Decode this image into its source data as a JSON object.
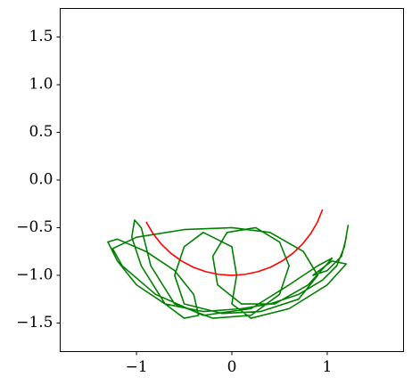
{
  "chart_data": {
    "type": "line",
    "xlim": [
      -1.8,
      1.8
    ],
    "ylim": [
      -1.8,
      1.8
    ],
    "xticks": [
      {
        "value": -1,
        "label": "−1"
      },
      0,
      1
    ],
    "yticks": [
      {
        "value": 1.5,
        "label": "1.5"
      },
      {
        "value": 1.0,
        "label": "1.0"
      },
      {
        "value": 0.5,
        "label": "0.5"
      },
      {
        "value": 0.0,
        "label": "0.0"
      },
      {
        "value": -0.5,
        "label": "−0.5"
      },
      {
        "value": -1.0,
        "label": "−1.0"
      },
      {
        "value": -1.5,
        "label": "−1.5"
      }
    ],
    "grid": false,
    "series": [
      {
        "color": "#008000",
        "x": [
          1.22,
          1.18,
          1.1,
          0.95,
          0.7,
          0.4,
          0.1,
          -0.3,
          -0.7,
          -1.0,
          -1.2,
          -1.3,
          -1.2,
          -0.9,
          -0.6,
          -0.4,
          -0.35,
          -0.5,
          -0.7,
          -0.95,
          -1.05,
          -1.02,
          -0.95,
          -0.85,
          -0.6,
          -0.2,
          0.2,
          0.5,
          0.6,
          0.5,
          0.25,
          -0.05,
          -0.2,
          -0.15,
          0.1,
          0.45,
          0.8,
          1.0,
          1.05,
          0.9,
          0.6,
          0.2,
          -0.3,
          -0.8,
          -1.15,
          -1.25,
          -1.0,
          -0.5,
          0.0,
          0.4,
          0.75,
          0.9,
          0.7,
          0.3,
          -0.1,
          -0.5,
          -0.6,
          -0.5,
          -0.3,
          0.0,
          0.05,
          0.0,
          0.2,
          0.6,
          1.0,
          1.2,
          1.05,
          0.85,
          1.0,
          1.15,
          1.2
        ],
        "y": [
          -0.47,
          -0.7,
          -0.9,
          -1.05,
          -1.2,
          -1.3,
          -1.35,
          -1.38,
          -1.3,
          -1.1,
          -0.85,
          -0.65,
          -0.62,
          -0.75,
          -0.95,
          -1.2,
          -1.42,
          -1.45,
          -1.3,
          -0.9,
          -0.6,
          -0.42,
          -0.5,
          -0.9,
          -1.3,
          -1.45,
          -1.42,
          -1.2,
          -0.9,
          -0.65,
          -0.5,
          -0.55,
          -0.8,
          -1.1,
          -1.3,
          -1.3,
          -1.1,
          -0.88,
          -0.82,
          -0.9,
          -1.1,
          -1.35,
          -1.42,
          -1.2,
          -0.9,
          -0.72,
          -0.6,
          -0.52,
          -0.5,
          -0.55,
          -0.75,
          -1.0,
          -1.25,
          -1.38,
          -1.4,
          -1.3,
          -1.0,
          -0.7,
          -0.55,
          -0.7,
          -1.0,
          -1.3,
          -1.45,
          -1.35,
          -1.1,
          -0.88,
          -0.85,
          -1.0,
          -0.95,
          -0.8,
          -0.6
        ]
      },
      {
        "color": "#ff0000",
        "x": [
          -0.899,
          -0.829,
          -0.743,
          -0.643,
          -0.53,
          -0.407,
          -0.276,
          -0.139,
          0,
          0.139,
          0.276,
          0.407,
          0.53,
          0.643,
          0.743,
          0.829,
          0.899,
          0.951
        ],
        "y": [
          -0.438,
          -0.559,
          -0.669,
          -0.766,
          -0.848,
          -0.914,
          -0.961,
          -0.99,
          -1,
          -0.99,
          -0.961,
          -0.914,
          -0.848,
          -0.766,
          -0.669,
          -0.559,
          -0.438,
          -0.309
        ]
      }
    ]
  }
}
